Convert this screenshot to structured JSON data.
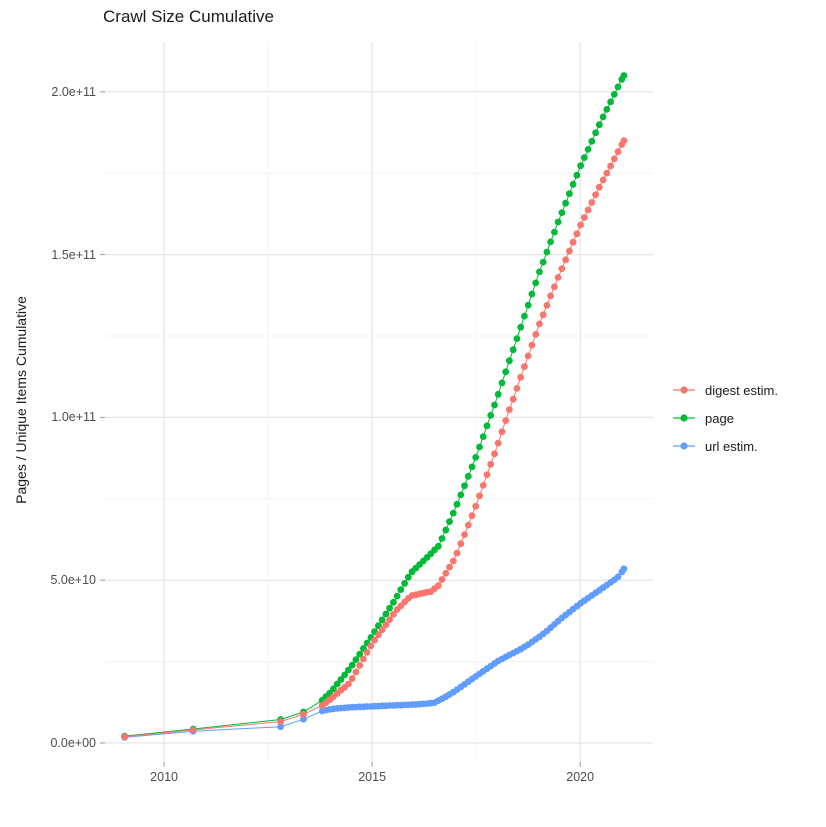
{
  "title": "Crawl Size Cumulative",
  "colors": {
    "digest_estim": "#F8766D",
    "page": "#00BA38",
    "url_estim": "#619CFF",
    "grid_major": "#E4E4E4",
    "grid_minor": "#F0F0F0",
    "tick_mark": "#999999",
    "tick_text": "#4d4d4d",
    "title_text": "#1a1a1a"
  },
  "legend": {
    "items": [
      {
        "label": "digest estim.",
        "color": "#F8766D"
      },
      {
        "label": "page",
        "color": "#00BA38"
      },
      {
        "label": "url estim.",
        "color": "#619CFF"
      }
    ]
  },
  "chart_data": {
    "type": "scatter",
    "title": "Crawl Size Cumulative",
    "xlabel": "",
    "ylabel": "Pages / Unique Items Cumulative",
    "value_unit": "1e10 pages/items (multiply values by 10^10)",
    "xlim": [
      2008.58,
      2021.75
    ],
    "ylim": [
      -0.585,
      21.53
    ],
    "grid": true,
    "legend_position": "right",
    "x_ticks": [
      {
        "v": 2010,
        "label": "2010"
      },
      {
        "v": 2015,
        "label": "2015"
      },
      {
        "v": 2020,
        "label": "2020"
      }
    ],
    "x_minor": [
      2012.5,
      2017.5
    ],
    "y_ticks": [
      {
        "v": 0,
        "label": "0.0e+00"
      },
      {
        "v": 5,
        "label": "5.0e+10"
      },
      {
        "v": 10,
        "label": "1.0e+11"
      },
      {
        "v": 15,
        "label": "1.5e+11"
      },
      {
        "v": 20,
        "label": "2.0e+11"
      }
    ],
    "y_minor": [
      2.5,
      7.5,
      12.5,
      17.5
    ],
    "series": [
      {
        "name": "digest estim.",
        "color": "#F8766D",
        "points": [
          [
            2009.05,
            0.19
          ],
          [
            2010.7,
            0.4
          ],
          [
            2012.8,
            0.66
          ],
          [
            2013.35,
            0.88
          ],
          [
            2013.8,
            1.15
          ],
          [
            2013.89,
            1.24
          ],
          [
            2013.98,
            1.33
          ],
          [
            2014.07,
            1.42
          ],
          [
            2014.16,
            1.52
          ],
          [
            2014.25,
            1.62
          ],
          [
            2014.34,
            1.71
          ],
          [
            2014.43,
            1.81
          ],
          [
            2014.52,
            1.98
          ],
          [
            2014.61,
            2.18
          ],
          [
            2014.7,
            2.38
          ],
          [
            2014.79,
            2.58
          ],
          [
            2014.88,
            2.78
          ],
          [
            2014.97,
            2.98
          ],
          [
            2015.06,
            3.16
          ],
          [
            2015.15,
            3.32
          ],
          [
            2015.24,
            3.48
          ],
          [
            2015.33,
            3.63
          ],
          [
            2015.42,
            3.79
          ],
          [
            2015.51,
            3.95
          ],
          [
            2015.6,
            4.1
          ],
          [
            2015.69,
            4.21
          ],
          [
            2015.78,
            4.33
          ],
          [
            2015.87,
            4.44
          ],
          [
            2015.96,
            4.53
          ],
          [
            2016.05,
            4.55
          ],
          [
            2016.14,
            4.58
          ],
          [
            2016.23,
            4.6
          ],
          [
            2016.32,
            4.63
          ],
          [
            2016.41,
            4.65
          ],
          [
            2016.5,
            4.74
          ],
          [
            2016.59,
            4.83
          ],
          [
            2016.68,
            5.02
          ],
          [
            2016.77,
            5.21
          ],
          [
            2016.86,
            5.4
          ],
          [
            2016.95,
            5.59
          ],
          [
            2017.04,
            5.83
          ],
          [
            2017.13,
            6.12
          ],
          [
            2017.22,
            6.4
          ],
          [
            2017.31,
            6.69
          ],
          [
            2017.4,
            6.98
          ],
          [
            2017.49,
            7.27
          ],
          [
            2017.58,
            7.59
          ],
          [
            2017.67,
            7.91
          ],
          [
            2017.76,
            8.24
          ],
          [
            2017.85,
            8.56
          ],
          [
            2017.94,
            8.88
          ],
          [
            2018.03,
            9.21
          ],
          [
            2018.12,
            9.56
          ],
          [
            2018.21,
            9.9
          ],
          [
            2018.3,
            10.24
          ],
          [
            2018.39,
            10.56
          ],
          [
            2018.48,
            10.89
          ],
          [
            2018.57,
            11.23
          ],
          [
            2018.66,
            11.56
          ],
          [
            2018.75,
            11.89
          ],
          [
            2018.84,
            12.22
          ],
          [
            2018.93,
            12.55
          ],
          [
            2019.02,
            12.87
          ],
          [
            2019.11,
            13.15
          ],
          [
            2019.2,
            13.44
          ],
          [
            2019.29,
            13.73
          ],
          [
            2019.38,
            14.01
          ],
          [
            2019.47,
            14.3
          ],
          [
            2019.56,
            14.57
          ],
          [
            2019.65,
            14.84
          ],
          [
            2019.74,
            15.11
          ],
          [
            2019.83,
            15.38
          ],
          [
            2019.92,
            15.64
          ],
          [
            2020.01,
            15.91
          ],
          [
            2020.1,
            16.14
          ],
          [
            2020.19,
            16.37
          ],
          [
            2020.28,
            16.6
          ],
          [
            2020.37,
            16.84
          ],
          [
            2020.46,
            17.07
          ],
          [
            2020.55,
            17.29
          ],
          [
            2020.64,
            17.5
          ],
          [
            2020.73,
            17.72
          ],
          [
            2020.82,
            17.94
          ],
          [
            2020.91,
            18.16
          ],
          [
            2021,
            18.38
          ],
          [
            2021.05,
            18.5
          ]
        ]
      },
      {
        "name": "page",
        "color": "#00BA38",
        "points": [
          [
            2009.05,
            0.21
          ],
          [
            2010.7,
            0.43
          ],
          [
            2012.8,
            0.72
          ],
          [
            2013.35,
            0.95
          ],
          [
            2013.8,
            1.31
          ],
          [
            2013.89,
            1.42
          ],
          [
            2013.98,
            1.53
          ],
          [
            2014.07,
            1.66
          ],
          [
            2014.16,
            1.81
          ],
          [
            2014.25,
            1.95
          ],
          [
            2014.34,
            2.09
          ],
          [
            2014.43,
            2.24
          ],
          [
            2014.52,
            2.39
          ],
          [
            2014.61,
            2.56
          ],
          [
            2014.7,
            2.73
          ],
          [
            2014.79,
            2.9
          ],
          [
            2014.88,
            3.07
          ],
          [
            2014.97,
            3.24
          ],
          [
            2015.06,
            3.42
          ],
          [
            2015.15,
            3.6
          ],
          [
            2015.24,
            3.78
          ],
          [
            2015.33,
            3.96
          ],
          [
            2015.42,
            4.14
          ],
          [
            2015.51,
            4.32
          ],
          [
            2015.6,
            4.51
          ],
          [
            2015.69,
            4.71
          ],
          [
            2015.78,
            4.9
          ],
          [
            2015.87,
            5.09
          ],
          [
            2015.96,
            5.26
          ],
          [
            2016.05,
            5.37
          ],
          [
            2016.14,
            5.48
          ],
          [
            2016.23,
            5.59
          ],
          [
            2016.32,
            5.7
          ],
          [
            2016.41,
            5.81
          ],
          [
            2016.5,
            5.93
          ],
          [
            2016.59,
            6.04
          ],
          [
            2016.68,
            6.28
          ],
          [
            2016.77,
            6.54
          ],
          [
            2016.86,
            6.8
          ],
          [
            2016.95,
            7.06
          ],
          [
            2017.04,
            7.33
          ],
          [
            2017.13,
            7.62
          ],
          [
            2017.22,
            7.9
          ],
          [
            2017.31,
            8.19
          ],
          [
            2017.4,
            8.48
          ],
          [
            2017.49,
            8.77
          ],
          [
            2017.58,
            9.09
          ],
          [
            2017.67,
            9.41
          ],
          [
            2017.76,
            9.74
          ],
          [
            2017.85,
            10.06
          ],
          [
            2017.94,
            10.38
          ],
          [
            2018.03,
            10.71
          ],
          [
            2018.12,
            11.06
          ],
          [
            2018.21,
            11.4
          ],
          [
            2018.3,
            11.74
          ],
          [
            2018.39,
            12.08
          ],
          [
            2018.48,
            12.42
          ],
          [
            2018.57,
            12.77
          ],
          [
            2018.66,
            13.11
          ],
          [
            2018.75,
            13.45
          ],
          [
            2018.84,
            13.79
          ],
          [
            2018.93,
            14.13
          ],
          [
            2019.02,
            14.47
          ],
          [
            2019.11,
            14.77
          ],
          [
            2019.2,
            15.08
          ],
          [
            2019.29,
            15.39
          ],
          [
            2019.38,
            15.69
          ],
          [
            2019.47,
            16
          ],
          [
            2019.56,
            16.29
          ],
          [
            2019.65,
            16.58
          ],
          [
            2019.74,
            16.87
          ],
          [
            2019.83,
            17.16
          ],
          [
            2019.92,
            17.44
          ],
          [
            2020.01,
            17.73
          ],
          [
            2020.1,
            17.98
          ],
          [
            2020.19,
            18.23
          ],
          [
            2020.28,
            18.48
          ],
          [
            2020.37,
            18.74
          ],
          [
            2020.46,
            18.99
          ],
          [
            2020.55,
            19.23
          ],
          [
            2020.64,
            19.46
          ],
          [
            2020.73,
            19.69
          ],
          [
            2020.82,
            19.92
          ],
          [
            2020.91,
            20.15
          ],
          [
            2021,
            20.38
          ],
          [
            2021.05,
            20.5
          ]
        ]
      },
      {
        "name": "url estim.",
        "color": "#619CFF",
        "points": [
          [
            2009.05,
            0.17
          ],
          [
            2010.7,
            0.36
          ],
          [
            2012.8,
            0.5
          ],
          [
            2013.35,
            0.73
          ],
          [
            2013.8,
            0.98
          ],
          [
            2013.89,
            1.01
          ],
          [
            2013.98,
            1.03
          ],
          [
            2014.07,
            1.05
          ],
          [
            2014.16,
            1.06
          ],
          [
            2014.25,
            1.07
          ],
          [
            2014.34,
            1.08
          ],
          [
            2014.43,
            1.09
          ],
          [
            2014.52,
            1.1
          ],
          [
            2014.61,
            1.1
          ],
          [
            2014.7,
            1.11
          ],
          [
            2014.79,
            1.11
          ],
          [
            2014.88,
            1.12
          ],
          [
            2014.97,
            1.12
          ],
          [
            2015.06,
            1.13
          ],
          [
            2015.15,
            1.13
          ],
          [
            2015.24,
            1.14
          ],
          [
            2015.33,
            1.14
          ],
          [
            2015.42,
            1.15
          ],
          [
            2015.51,
            1.15
          ],
          [
            2015.6,
            1.16
          ],
          [
            2015.69,
            1.16
          ],
          [
            2015.78,
            1.17
          ],
          [
            2015.87,
            1.17
          ],
          [
            2015.96,
            1.18
          ],
          [
            2016.05,
            1.18
          ],
          [
            2016.14,
            1.19
          ],
          [
            2016.23,
            1.2
          ],
          [
            2016.32,
            1.21
          ],
          [
            2016.41,
            1.22
          ],
          [
            2016.5,
            1.24
          ],
          [
            2016.59,
            1.3
          ],
          [
            2016.68,
            1.36
          ],
          [
            2016.77,
            1.42
          ],
          [
            2016.86,
            1.49
          ],
          [
            2016.95,
            1.56
          ],
          [
            2017.04,
            1.64
          ],
          [
            2017.13,
            1.72
          ],
          [
            2017.22,
            1.8
          ],
          [
            2017.31,
            1.88
          ],
          [
            2017.4,
            1.96
          ],
          [
            2017.49,
            2.04
          ],
          [
            2017.58,
            2.12
          ],
          [
            2017.67,
            2.2
          ],
          [
            2017.76,
            2.28
          ],
          [
            2017.85,
            2.36
          ],
          [
            2017.94,
            2.44
          ],
          [
            2018.03,
            2.52
          ],
          [
            2018.12,
            2.58
          ],
          [
            2018.21,
            2.64
          ],
          [
            2018.3,
            2.7
          ],
          [
            2018.39,
            2.76
          ],
          [
            2018.48,
            2.82
          ],
          [
            2018.57,
            2.88
          ],
          [
            2018.66,
            2.95
          ],
          [
            2018.75,
            3.02
          ],
          [
            2018.84,
            3.1
          ],
          [
            2018.93,
            3.18
          ],
          [
            2019.02,
            3.26
          ],
          [
            2019.11,
            3.35
          ],
          [
            2019.2,
            3.44
          ],
          [
            2019.29,
            3.54
          ],
          [
            2019.38,
            3.64
          ],
          [
            2019.47,
            3.74
          ],
          [
            2019.56,
            3.84
          ],
          [
            2019.65,
            3.93
          ],
          [
            2019.74,
            4.02
          ],
          [
            2019.83,
            4.11
          ],
          [
            2019.92,
            4.2
          ],
          [
            2020.01,
            4.29
          ],
          [
            2020.1,
            4.37
          ],
          [
            2020.19,
            4.45
          ],
          [
            2020.28,
            4.53
          ],
          [
            2020.37,
            4.61
          ],
          [
            2020.46,
            4.69
          ],
          [
            2020.55,
            4.77
          ],
          [
            2020.64,
            4.85
          ],
          [
            2020.73,
            4.93
          ],
          [
            2020.82,
            5.01
          ],
          [
            2020.91,
            5.1
          ],
          [
            2021,
            5.25
          ],
          [
            2021.05,
            5.35
          ]
        ]
      }
    ]
  }
}
